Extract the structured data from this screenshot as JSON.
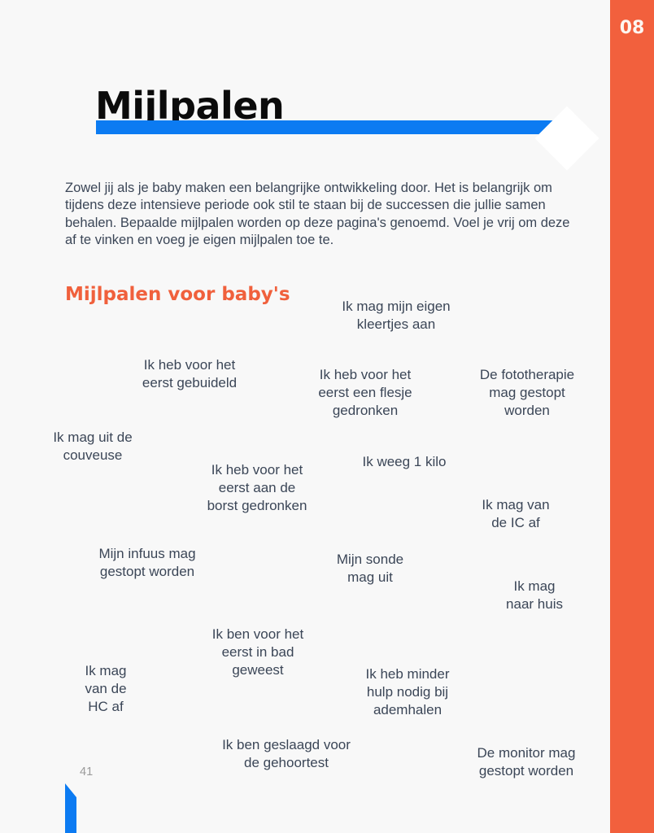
{
  "page": {
    "badge_number": "08",
    "title": "Mijlpalen",
    "intro": "Zowel jij als je baby maken een belangrijke ontwikkeling door. Het is belangrijk om\ntijdens deze intensieve periode ook stil te staan bij de successen die jullie samen\nbehalen. Bepaalde mijlpalen worden op deze pagina's genoemd. Voel je vrij om deze\naf te vinken en voeg je eigen mijlpalen toe te.",
    "section_heading": "Mijlpalen voor baby's",
    "footer_page_number": "41"
  },
  "colors": {
    "accent_orange": "#F2603D",
    "accent_blue": "#0C7BF2",
    "heading_orange": "#F0603C",
    "text_dark": "#3B4657",
    "background": "#F8F8F8",
    "footer_number_gray": "#9B9B9B"
  },
  "milestones": [
    {
      "text": "Ik mag mijn eigen\nkleertjes aan"
    },
    {
      "text": "Ik heb voor het\neerst gebuideld"
    },
    {
      "text": "Ik heb voor het\neerst een flesje\ngedronken"
    },
    {
      "text": "De fototherapie\nmag gestopt\nworden"
    },
    {
      "text": "Ik mag uit de\ncouveuse"
    },
    {
      "text": "Ik weeg 1 kilo"
    },
    {
      "text": "Ik heb voor het\neerst aan de\nborst gedronken"
    },
    {
      "text": "Ik mag van\nde IC af"
    },
    {
      "text": "Mijn infuus mag\ngestopt worden"
    },
    {
      "text": "Mijn sonde\nmag uit"
    },
    {
      "text": "Ik mag\nnaar huis"
    },
    {
      "text": "Ik ben voor het\neerst in bad\ngeweest"
    },
    {
      "text": "Ik mag\nvan de\nHC af"
    },
    {
      "text": "Ik heb minder\nhulp nodig bij\nademhalen"
    },
    {
      "text": "Ik ben geslaagd voor\nde gehoortest"
    },
    {
      "text": "De monitor mag\ngestopt worden"
    }
  ]
}
